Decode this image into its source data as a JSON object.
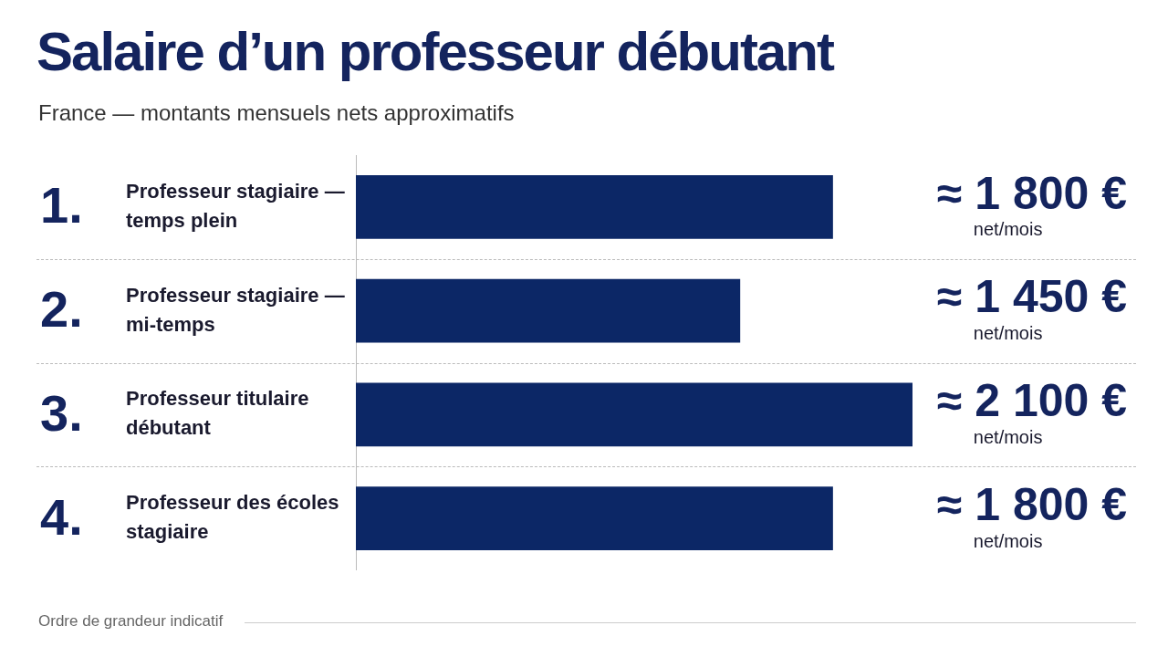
{
  "chart_data": {
    "type": "bar",
    "orientation": "horizontal",
    "title": "Salaire d’un professeur débutant",
    "subtitle": "France — montants mensuels nets approximatifs",
    "categories": [
      "1. Professeur stagiaire — temps plein",
      "2. Professeur stagiaire — mi-temps",
      "3. Professeur titulaire débutant",
      "4. Professeur des écoles stagiaire"
    ],
    "values": [
      1800,
      1450,
      2100,
      1800
    ],
    "value_labels": [
      "≈ 1 800 €\nnet/mois",
      "≈ 1 450 €\nnet/mois",
      "≈ 2 100 €\nnet/mois",
      "≈ 1 800 €\nnet/mois"
    ],
    "color": "#0c2766",
    "tick_labels": "y",
    "annotations": [
      "Ordre de grandeur indicatif"
    ]
  }
}
